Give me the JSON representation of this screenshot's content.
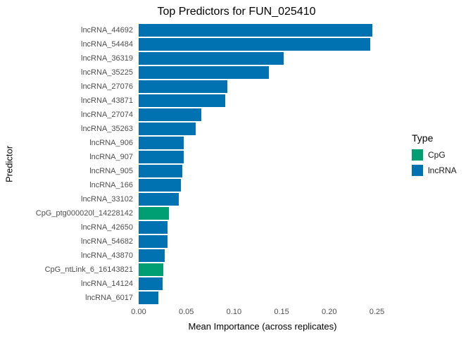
{
  "title": "Top Predictors for FUN_025410",
  "chart_data": {
    "type": "bar",
    "orientation": "horizontal",
    "title": "Top Predictors for FUN_025410",
    "xlabel": "Mean Importance (across replicates)",
    "ylabel": "Predictor",
    "xlim": [
      0,
      0.26
    ],
    "xticks": [
      0.0,
      0.05,
      0.1,
      0.15,
      0.2,
      0.25
    ],
    "grid": false,
    "legend": {
      "title": "Type",
      "position": "right",
      "items": [
        {
          "label": "CpG",
          "color": "#009E73"
        },
        {
          "label": "lncRNA",
          "color": "#0072B2"
        }
      ]
    },
    "series_colors": {
      "CpG": "#009E73",
      "lncRNA": "#0072B2"
    },
    "categories": [
      "lncRNA_44692",
      "lncRNA_54484",
      "lncRNA_36319",
      "lncRNA_35225",
      "lncRNA_27076",
      "lncRNA_43871",
      "lncRNA_27074",
      "lncRNA_35263",
      "lncRNA_906",
      "lncRNA_907",
      "lncRNA_905",
      "lncRNA_166",
      "lncRNA_33102",
      "CpG_ptg000020l_14228142",
      "lncRNA_42650",
      "lncRNA_54682",
      "lncRNA_43870",
      "CpG_ntLink_6_16143821",
      "lncRNA_14124",
      "lncRNA_6017"
    ],
    "values": [
      0.245,
      0.243,
      0.152,
      0.137,
      0.093,
      0.091,
      0.066,
      0.06,
      0.047,
      0.047,
      0.046,
      0.044,
      0.042,
      0.032,
      0.03,
      0.03,
      0.027,
      0.026,
      0.025,
      0.021
    ],
    "types": [
      "lncRNA",
      "lncRNA",
      "lncRNA",
      "lncRNA",
      "lncRNA",
      "lncRNA",
      "lncRNA",
      "lncRNA",
      "lncRNA",
      "lncRNA",
      "lncRNA",
      "lncRNA",
      "lncRNA",
      "CpG",
      "lncRNA",
      "lncRNA",
      "lncRNA",
      "CpG",
      "lncRNA",
      "lncRNA"
    ]
  }
}
